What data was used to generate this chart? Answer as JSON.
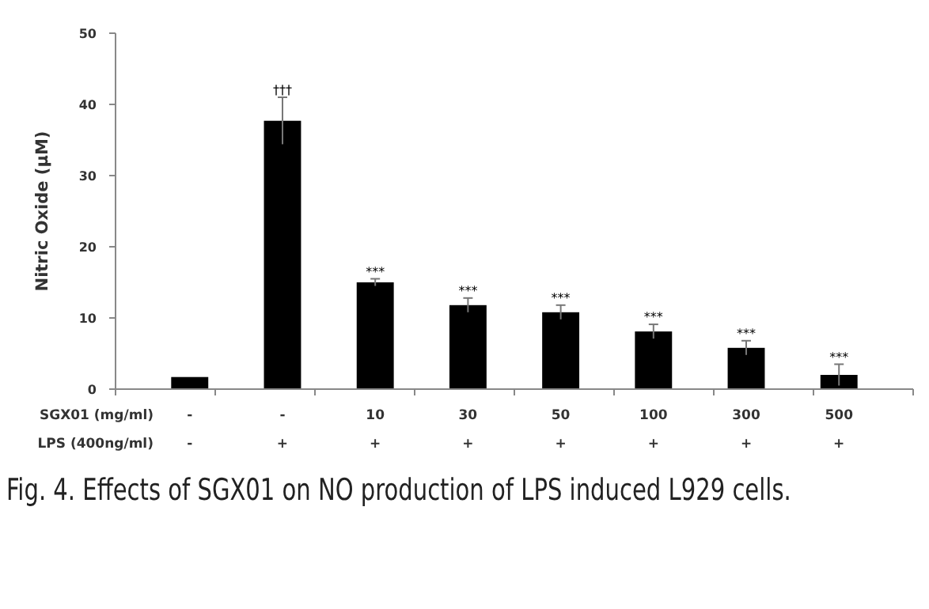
{
  "chart_data": {
    "type": "bar",
    "ylabel": "Nitric Oxide (μM)",
    "categories": [
      "-\n-",
      "-\n+",
      "10\n+",
      "30\n+",
      "50\n+",
      "100\n+",
      "300\n+",
      "500\n+"
    ],
    "values": [
      1.7,
      37.7,
      15,
      11.8,
      10.8,
      8.1,
      5.8,
      2
    ],
    "errors": [
      null,
      3.3,
      0.5,
      1,
      1,
      1,
      1,
      1.5
    ],
    "value_labels": [
      null,
      "†††",
      "***",
      "***",
      "***",
      "***",
      "***",
      "***"
    ],
    "color": "#000000",
    "ylim": [
      0,
      50
    ],
    "yticks": [
      0,
      10,
      20,
      30,
      40,
      50
    ],
    "grid": false,
    "annotations": [
      "SGX01 (mg/ml)",
      "LPS (400ng/ml)",
      "Fig. 4. Effects of SGX01 on NO production of LPS induced L929 cells."
    ]
  }
}
